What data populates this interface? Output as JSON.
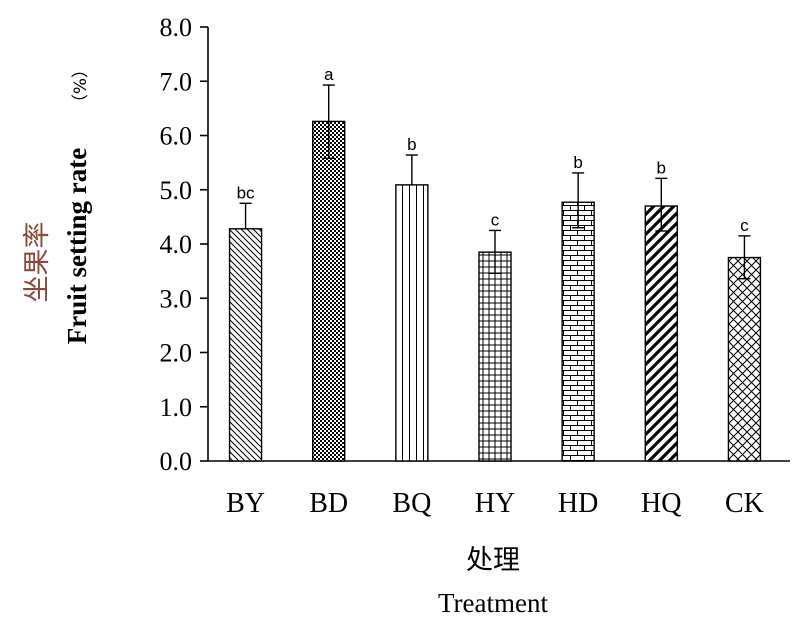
{
  "chart_data": {
    "type": "bar",
    "categories": [
      "BY",
      "BD",
      "BQ",
      "HY",
      "HD",
      "HQ",
      "CK"
    ],
    "values": [
      4.28,
      6.26,
      5.09,
      3.85,
      4.77,
      4.7,
      3.75
    ],
    "error_upper": [
      4.75,
      6.93,
      5.64,
      4.25,
      5.31,
      5.21,
      4.15
    ],
    "error_lower": [
      4.28,
      5.58,
      5.09,
      3.46,
      4.3,
      4.24,
      3.36
    ],
    "significance": [
      "bc",
      "a",
      "b",
      "c",
      "b",
      "b",
      "c"
    ],
    "patterns": [
      "diag-dense",
      "checker",
      "vertical",
      "grid",
      "brick",
      "diag-wide",
      "diamond"
    ],
    "ylim": [
      0,
      8
    ],
    "yticks": [
      "0.0",
      "1.0",
      "2.0",
      "3.0",
      "4.0",
      "5.0",
      "6.0",
      "7.0",
      "8.0"
    ],
    "ylabel_cn": "坐果率",
    "ylabel_en": "Fruit setting rate",
    "ylabel_unit": "（%）",
    "xlabel_cn": "处理",
    "xlabel_en": "Treatment",
    "grid": false,
    "bar_stroke_color": "#000000"
  }
}
